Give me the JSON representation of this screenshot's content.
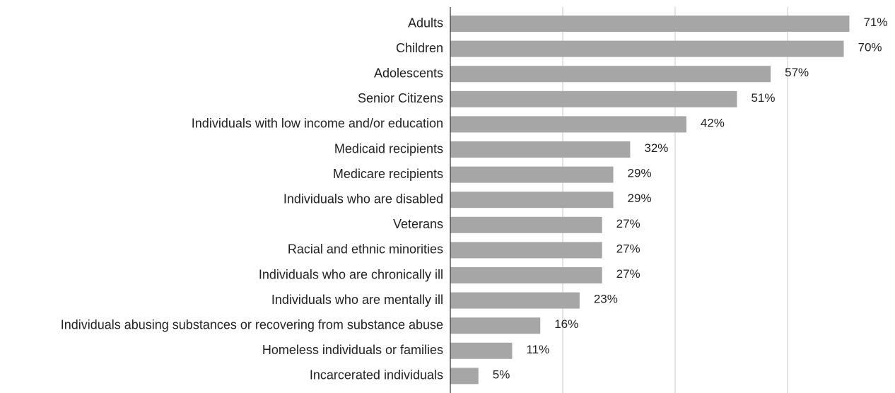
{
  "chart_data": {
    "type": "bar",
    "orientation": "horizontal",
    "categories": [
      "Adults",
      "Children",
      "Adolescents",
      "Senior Citizens",
      "Individuals with low income and/or education",
      "Medicaid recipients",
      "Medicare recipients",
      "Individuals who are disabled",
      "Veterans",
      "Racial and ethnic minorities",
      "Individuals who are chronically ill",
      "Individuals who are mentally ill",
      "Individuals abusing substances or recovering from substance abuse",
      "Homeless individuals or families",
      "Incarcerated individuals"
    ],
    "values": [
      71,
      70,
      57,
      51,
      42,
      32,
      29,
      29,
      27,
      27,
      27,
      23,
      16,
      11,
      5
    ],
    "value_labels": [
      "71%",
      "70%",
      "57%",
      "51%",
      "42%",
      "32%",
      "29%",
      "29%",
      "27%",
      "27%",
      "27%",
      "23%",
      "16%",
      "11%",
      "5%"
    ],
    "title": "",
    "xlabel": "",
    "ylabel": "",
    "xlim": [
      0,
      80
    ],
    "gridlines": [
      20,
      40,
      60
    ],
    "grid": true,
    "legend": "none",
    "bar_color": "#a6a6a6"
  }
}
